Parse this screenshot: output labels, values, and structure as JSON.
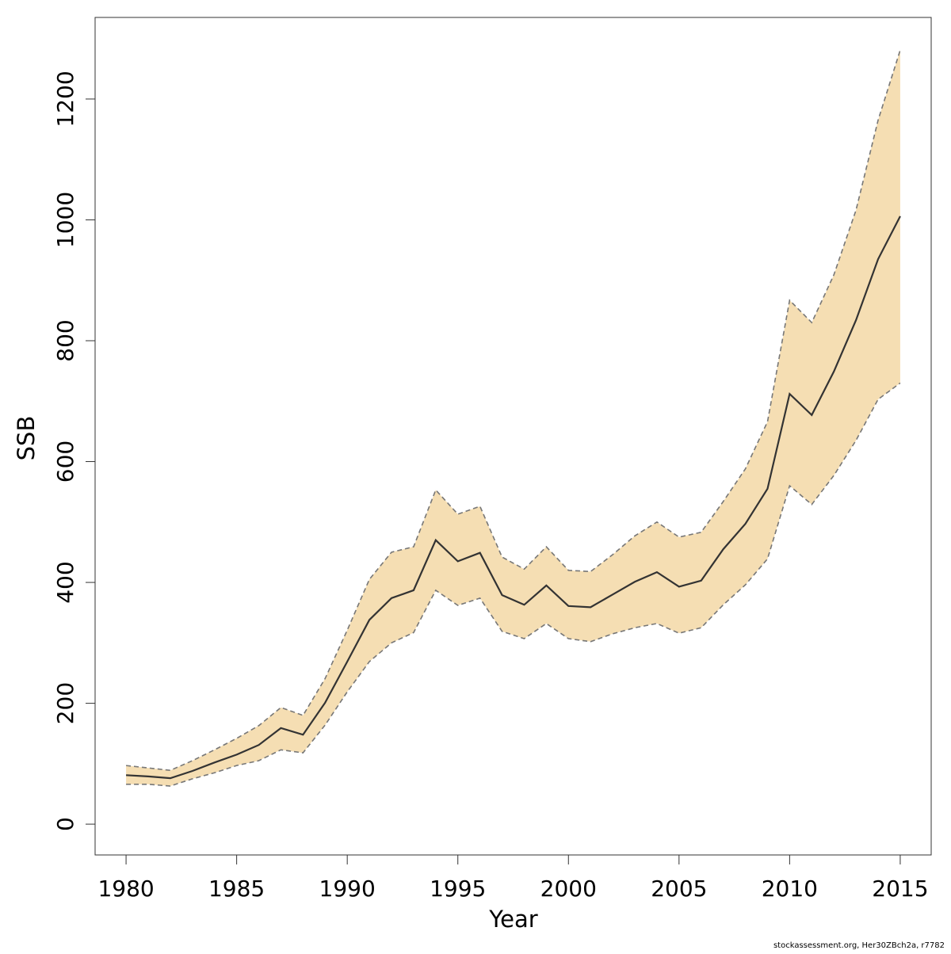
{
  "chart_data": {
    "type": "line",
    "x_label": "Year",
    "y_label": "SSB",
    "footnote": "stockassessment.org, Her30ZBch2a, r7782",
    "x": [
      1980,
      1981,
      1982,
      1983,
      1984,
      1985,
      1986,
      1987,
      1988,
      1989,
      1990,
      1991,
      1992,
      1993,
      1994,
      1995,
      1996,
      1997,
      1998,
      1999,
      2000,
      2001,
      2002,
      2003,
      2004,
      2005,
      2006,
      2007,
      2008,
      2009,
      2010,
      2011,
      2012,
      2013,
      2014,
      2015
    ],
    "series": [
      {
        "color": "#333333",
        "values": [
          81,
          79,
          76,
          88,
          102,
          115,
          131,
          159,
          148,
          201,
          269,
          338,
          374,
          387,
          470,
          435,
          449,
          379,
          363,
          395,
          361,
          359,
          380,
          401,
          417,
          393,
          403,
          455,
          497,
          555,
          712,
          677,
          749,
          834,
          935,
          1006
        ]
      },
      {
        "color": "#777777",
        "values": [
          97,
          93,
          89,
          105,
          123,
          142,
          163,
          193,
          180,
          241,
          321,
          405,
          450,
          459,
          553,
          513,
          526,
          442,
          422,
          459,
          420,
          418,
          446,
          477,
          500,
          475,
          483,
          534,
          588,
          666,
          867,
          830,
          909,
          1016,
          1165,
          1281
        ]
      },
      {
        "color": "#777777",
        "values": [
          66,
          66,
          63,
          75,
          85,
          97,
          105,
          123,
          118,
          164,
          219,
          269,
          300,
          317,
          387,
          362,
          374,
          319,
          307,
          332,
          307,
          302,
          315,
          325,
          332,
          316,
          325,
          363,
          396,
          439,
          560,
          529,
          577,
          635,
          703,
          730
        ]
      }
    ],
    "band_color": "#f5deb3",
    "xlim": [
      1978.6,
      2016.4
    ],
    "ylim": [
      -51,
      1335
    ],
    "xticks": [
      1980,
      1985,
      1990,
      1995,
      2000,
      2005,
      2010,
      2015
    ],
    "yticks": [
      0,
      200,
      400,
      600,
      800,
      1000,
      1200
    ]
  }
}
